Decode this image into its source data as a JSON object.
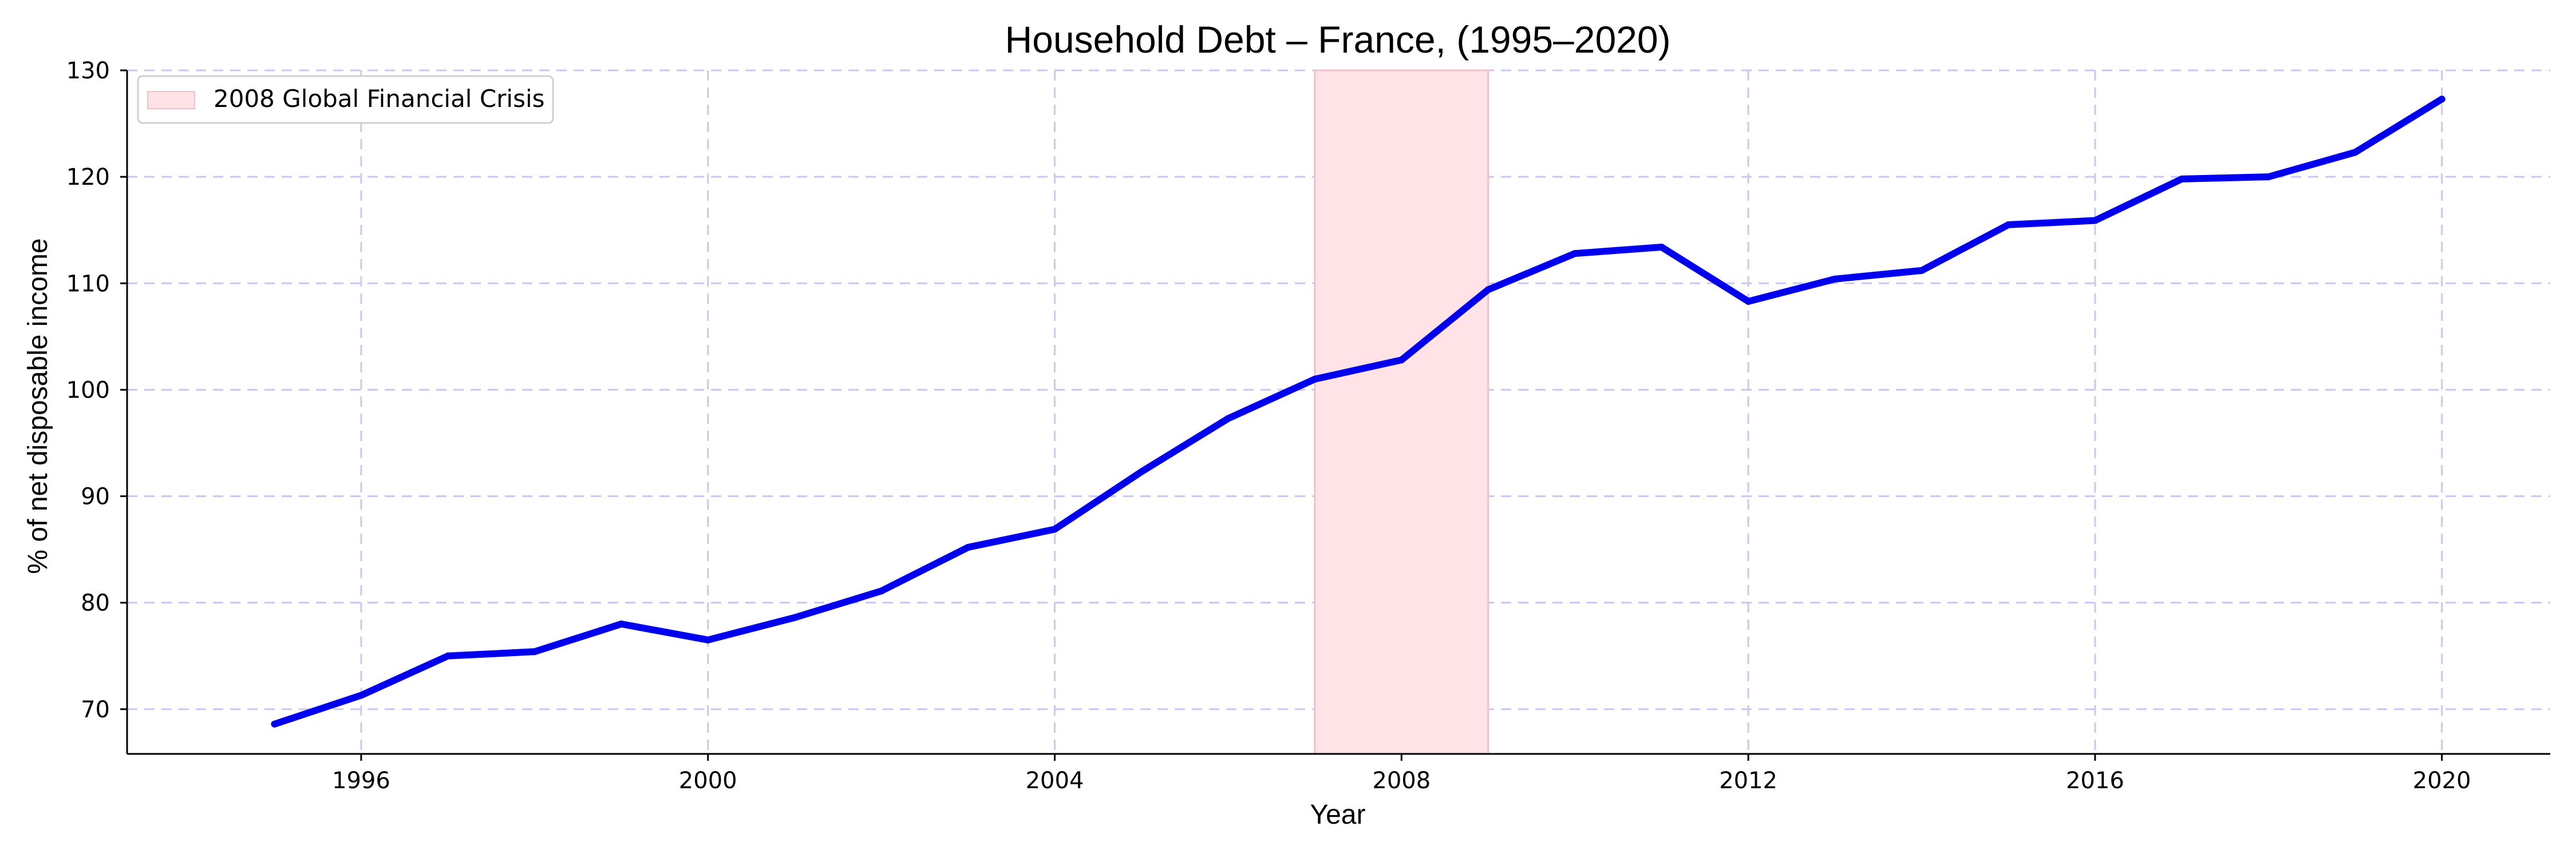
{
  "chart_data": {
    "type": "line",
    "title": "Household Debt – France, (1995–2020)",
    "xlabel": "Year",
    "ylabel": "% of net disposable income",
    "xlim": [
      1993.3,
      2021.25
    ],
    "ylim": [
      65.8,
      130
    ],
    "xticks": [
      1996,
      2000,
      2004,
      2008,
      2012,
      2016,
      2020
    ],
    "yticks": [
      70,
      80,
      90,
      100,
      110,
      120,
      130
    ],
    "grid": true,
    "legend_position": "top-left",
    "shaded_region": {
      "label": "2008 Global Financial Crisis",
      "x_start": 2007,
      "x_end": 2009,
      "color": "#ffe3e6",
      "edge_color": "#f2c0c6"
    },
    "series": [
      {
        "color": "#0000ee",
        "x": [
          1995,
          1996,
          1997,
          1998,
          1999,
          2000,
          2001,
          2002,
          2003,
          2004,
          2005,
          2006,
          2007,
          2008,
          2009,
          2010,
          2011,
          2012,
          2013,
          2014,
          2015,
          2016,
          2017,
          2018,
          2019,
          2020
        ],
        "y": [
          68.6,
          71.3,
          75.0,
          75.4,
          78.0,
          76.5,
          78.6,
          81.1,
          85.2,
          86.9,
          92.3,
          97.3,
          101.0,
          102.8,
          109.4,
          112.8,
          113.4,
          108.3,
          110.4,
          111.2,
          115.5,
          115.9,
          119.8,
          120.0,
          122.3,
          127.3
        ]
      }
    ]
  }
}
